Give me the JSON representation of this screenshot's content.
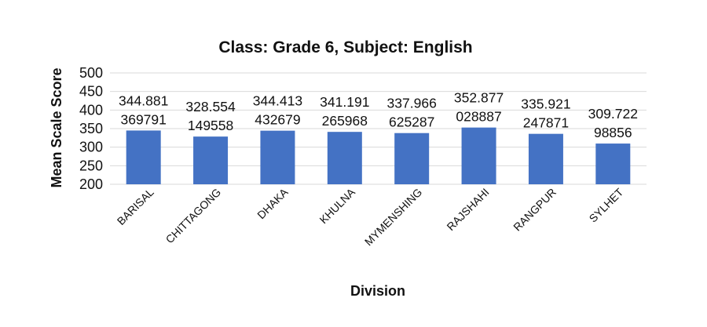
{
  "chart_data": {
    "type": "bar",
    "title": "Class: Grade 6, Subject: English",
    "xlabel": "Division",
    "ylabel": "Mean Scale Score",
    "ylim": [
      200,
      500
    ],
    "yticks": [
      "200",
      "250",
      "300",
      "350",
      "400",
      "450",
      "500"
    ],
    "grid": true,
    "legend": "none",
    "bar_color": "#4472c4",
    "categories": [
      "BARISAL",
      "CHITTAGONG",
      "DHAKA",
      "KHULNA",
      "MYMENSHING",
      "RAJSHAHI",
      "RANGPUR",
      "SYLHET"
    ],
    "values": [
      344.881369791,
      328.554149558,
      344.413432679,
      341.191265968,
      337.966625287,
      352.877028887,
      335.921247871,
      309.72298856
    ],
    "data_labels": [
      [
        "344.881",
        "369791"
      ],
      [
        "328.554",
        "149558"
      ],
      [
        "344.413",
        "432679"
      ],
      [
        "341.191",
        "265968"
      ],
      [
        "337.966",
        "625287"
      ],
      [
        "352.877",
        "028887"
      ],
      [
        "335.921",
        "247871"
      ],
      [
        "309.722",
        "98856"
      ]
    ]
  }
}
